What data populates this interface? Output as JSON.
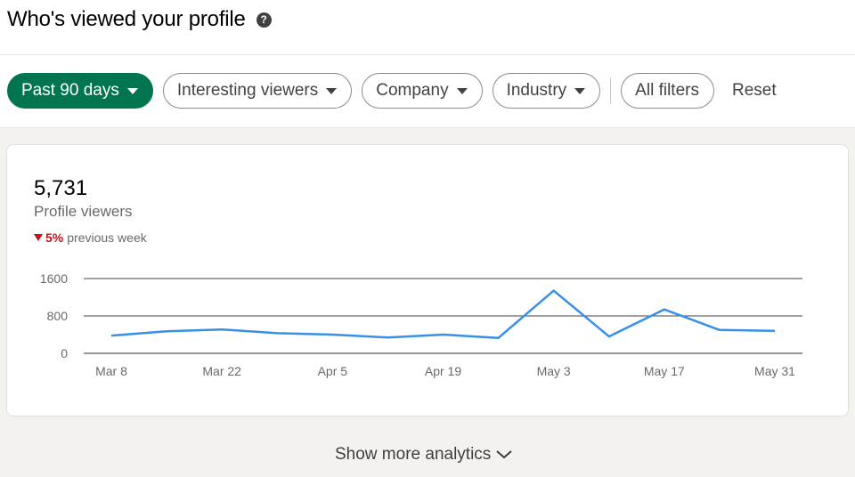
{
  "header": {
    "title": "Who's viewed your profile",
    "help_icon": "question-circle-icon"
  },
  "filters": {
    "items": [
      {
        "label": "Past 90 days",
        "active": true
      },
      {
        "label": "Interesting viewers",
        "active": false
      },
      {
        "label": "Company",
        "active": false
      },
      {
        "label": "Industry",
        "active": false
      },
      {
        "label": "All filters",
        "active": false
      }
    ],
    "reset_label": "Reset"
  },
  "summary": {
    "value": "5,731",
    "label": "Profile viewers",
    "trend_value": "5%",
    "trend_label": "previous week",
    "trend_direction": "down",
    "trend_color": "#cc1016"
  },
  "chart_data": {
    "type": "line",
    "x": [
      "Mar 8",
      "Mar 15",
      "Mar 22",
      "Mar 29",
      "Apr 5",
      "Apr 12",
      "Apr 19",
      "Apr 26",
      "May 3",
      "May 10",
      "May 17",
      "May 24",
      "May 31"
    ],
    "x_tick_labels": [
      "Mar 8",
      "Mar 22",
      "Apr 5",
      "Apr 19",
      "May 3",
      "May 17",
      "May 31"
    ],
    "series": [
      {
        "values": [
          380,
          470,
          510,
          430,
          400,
          340,
          400,
          330,
          1340,
          360,
          940,
          500,
          480
        ]
      }
    ],
    "y_ticks": [
      0,
      800,
      1600
    ],
    "ylim": [
      0,
      1600
    ],
    "line_color": "#378fe9",
    "grid": true
  },
  "footer": {
    "show_more_label": "Show more analytics",
    "show_more_icon": "chevron-down-icon"
  },
  "colors": {
    "accent": "#01754f"
  }
}
